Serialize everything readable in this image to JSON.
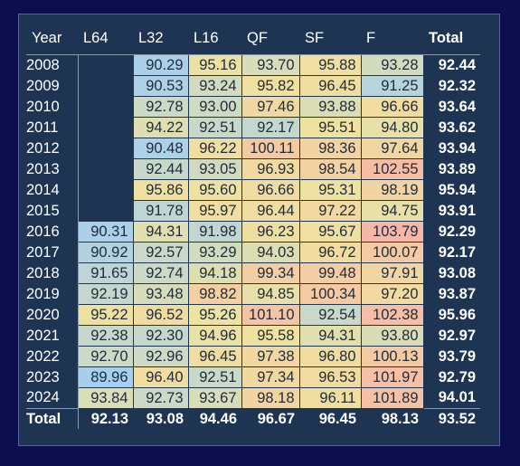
{
  "colors": {
    "page_bg": "#0c0e4e",
    "panel_bg": "#1d3553",
    "text": "#ffffff",
    "cell_text": "#1e2b3c",
    "scale_low": "#a6cfee",
    "scale_mid": "#efe2a0",
    "scale_high": "#f7b7a6"
  },
  "matrix": {
    "corner_label": "Year",
    "columns": [
      "L64",
      "L32",
      "L16",
      "QF",
      "SF",
      "F"
    ],
    "total_label": "Total",
    "rows": [
      {
        "year": "2008",
        "values": [
          "",
          "90.29",
          "95.16",
          "93.70",
          "95.88",
          "93.28"
        ],
        "total": "92.44"
      },
      {
        "year": "2009",
        "values": [
          "",
          "90.53",
          "93.24",
          "95.82",
          "96.45",
          "91.25"
        ],
        "total": "92.32"
      },
      {
        "year": "2010",
        "values": [
          "",
          "92.78",
          "93.00",
          "97.46",
          "93.88",
          "96.66"
        ],
        "total": "93.64"
      },
      {
        "year": "2011",
        "values": [
          "",
          "94.22",
          "92.51",
          "92.17",
          "95.51",
          "94.80"
        ],
        "total": "93.62"
      },
      {
        "year": "2012",
        "values": [
          "",
          "90.48",
          "96.22",
          "100.11",
          "98.36",
          "97.64"
        ],
        "total": "93.94"
      },
      {
        "year": "2013",
        "values": [
          "",
          "92.44",
          "93.05",
          "96.93",
          "98.54",
          "102.55"
        ],
        "total": "93.89"
      },
      {
        "year": "2014",
        "values": [
          "",
          "95.86",
          "95.60",
          "96.66",
          "95.31",
          "98.19"
        ],
        "total": "95.94"
      },
      {
        "year": "2015",
        "values": [
          "",
          "91.78",
          "95.97",
          "96.44",
          "97.22",
          "94.75"
        ],
        "total": "93.91"
      },
      {
        "year": "2016",
        "values": [
          "90.31",
          "94.31",
          "91.98",
          "96.23",
          "95.67",
          "103.79"
        ],
        "total": "92.29"
      },
      {
        "year": "2017",
        "values": [
          "90.92",
          "92.57",
          "93.29",
          "94.03",
          "96.72",
          "100.07"
        ],
        "total": "92.17"
      },
      {
        "year": "2018",
        "values": [
          "91.65",
          "92.74",
          "94.18",
          "99.34",
          "99.48",
          "97.91"
        ],
        "total": "93.08"
      },
      {
        "year": "2019",
        "values": [
          "92.19",
          "93.48",
          "98.82",
          "94.85",
          "100.34",
          "97.20"
        ],
        "total": "93.87"
      },
      {
        "year": "2020",
        "values": [
          "95.22",
          "96.52",
          "95.26",
          "101.10",
          "92.54",
          "102.38"
        ],
        "total": "95.96"
      },
      {
        "year": "2021",
        "values": [
          "92.38",
          "92.30",
          "94.96",
          "95.58",
          "94.31",
          "93.80"
        ],
        "total": "92.97"
      },
      {
        "year": "2022",
        "values": [
          "92.70",
          "92.96",
          "96.45",
          "97.38",
          "96.80",
          "100.13"
        ],
        "total": "93.79"
      },
      {
        "year": "2023",
        "values": [
          "89.96",
          "96.40",
          "92.51",
          "97.34",
          "96.53",
          "101.97"
        ],
        "total": "92.79"
      },
      {
        "year": "2024",
        "values": [
          "93.84",
          "92.73",
          "93.67",
          "98.18",
          "96.11",
          "101.89"
        ],
        "total": "94.01"
      }
    ],
    "footer": {
      "label": "Total",
      "values": [
        "92.13",
        "93.08",
        "94.46",
        "96.67",
        "96.45",
        "98.13"
      ],
      "total": "93.52"
    }
  }
}
